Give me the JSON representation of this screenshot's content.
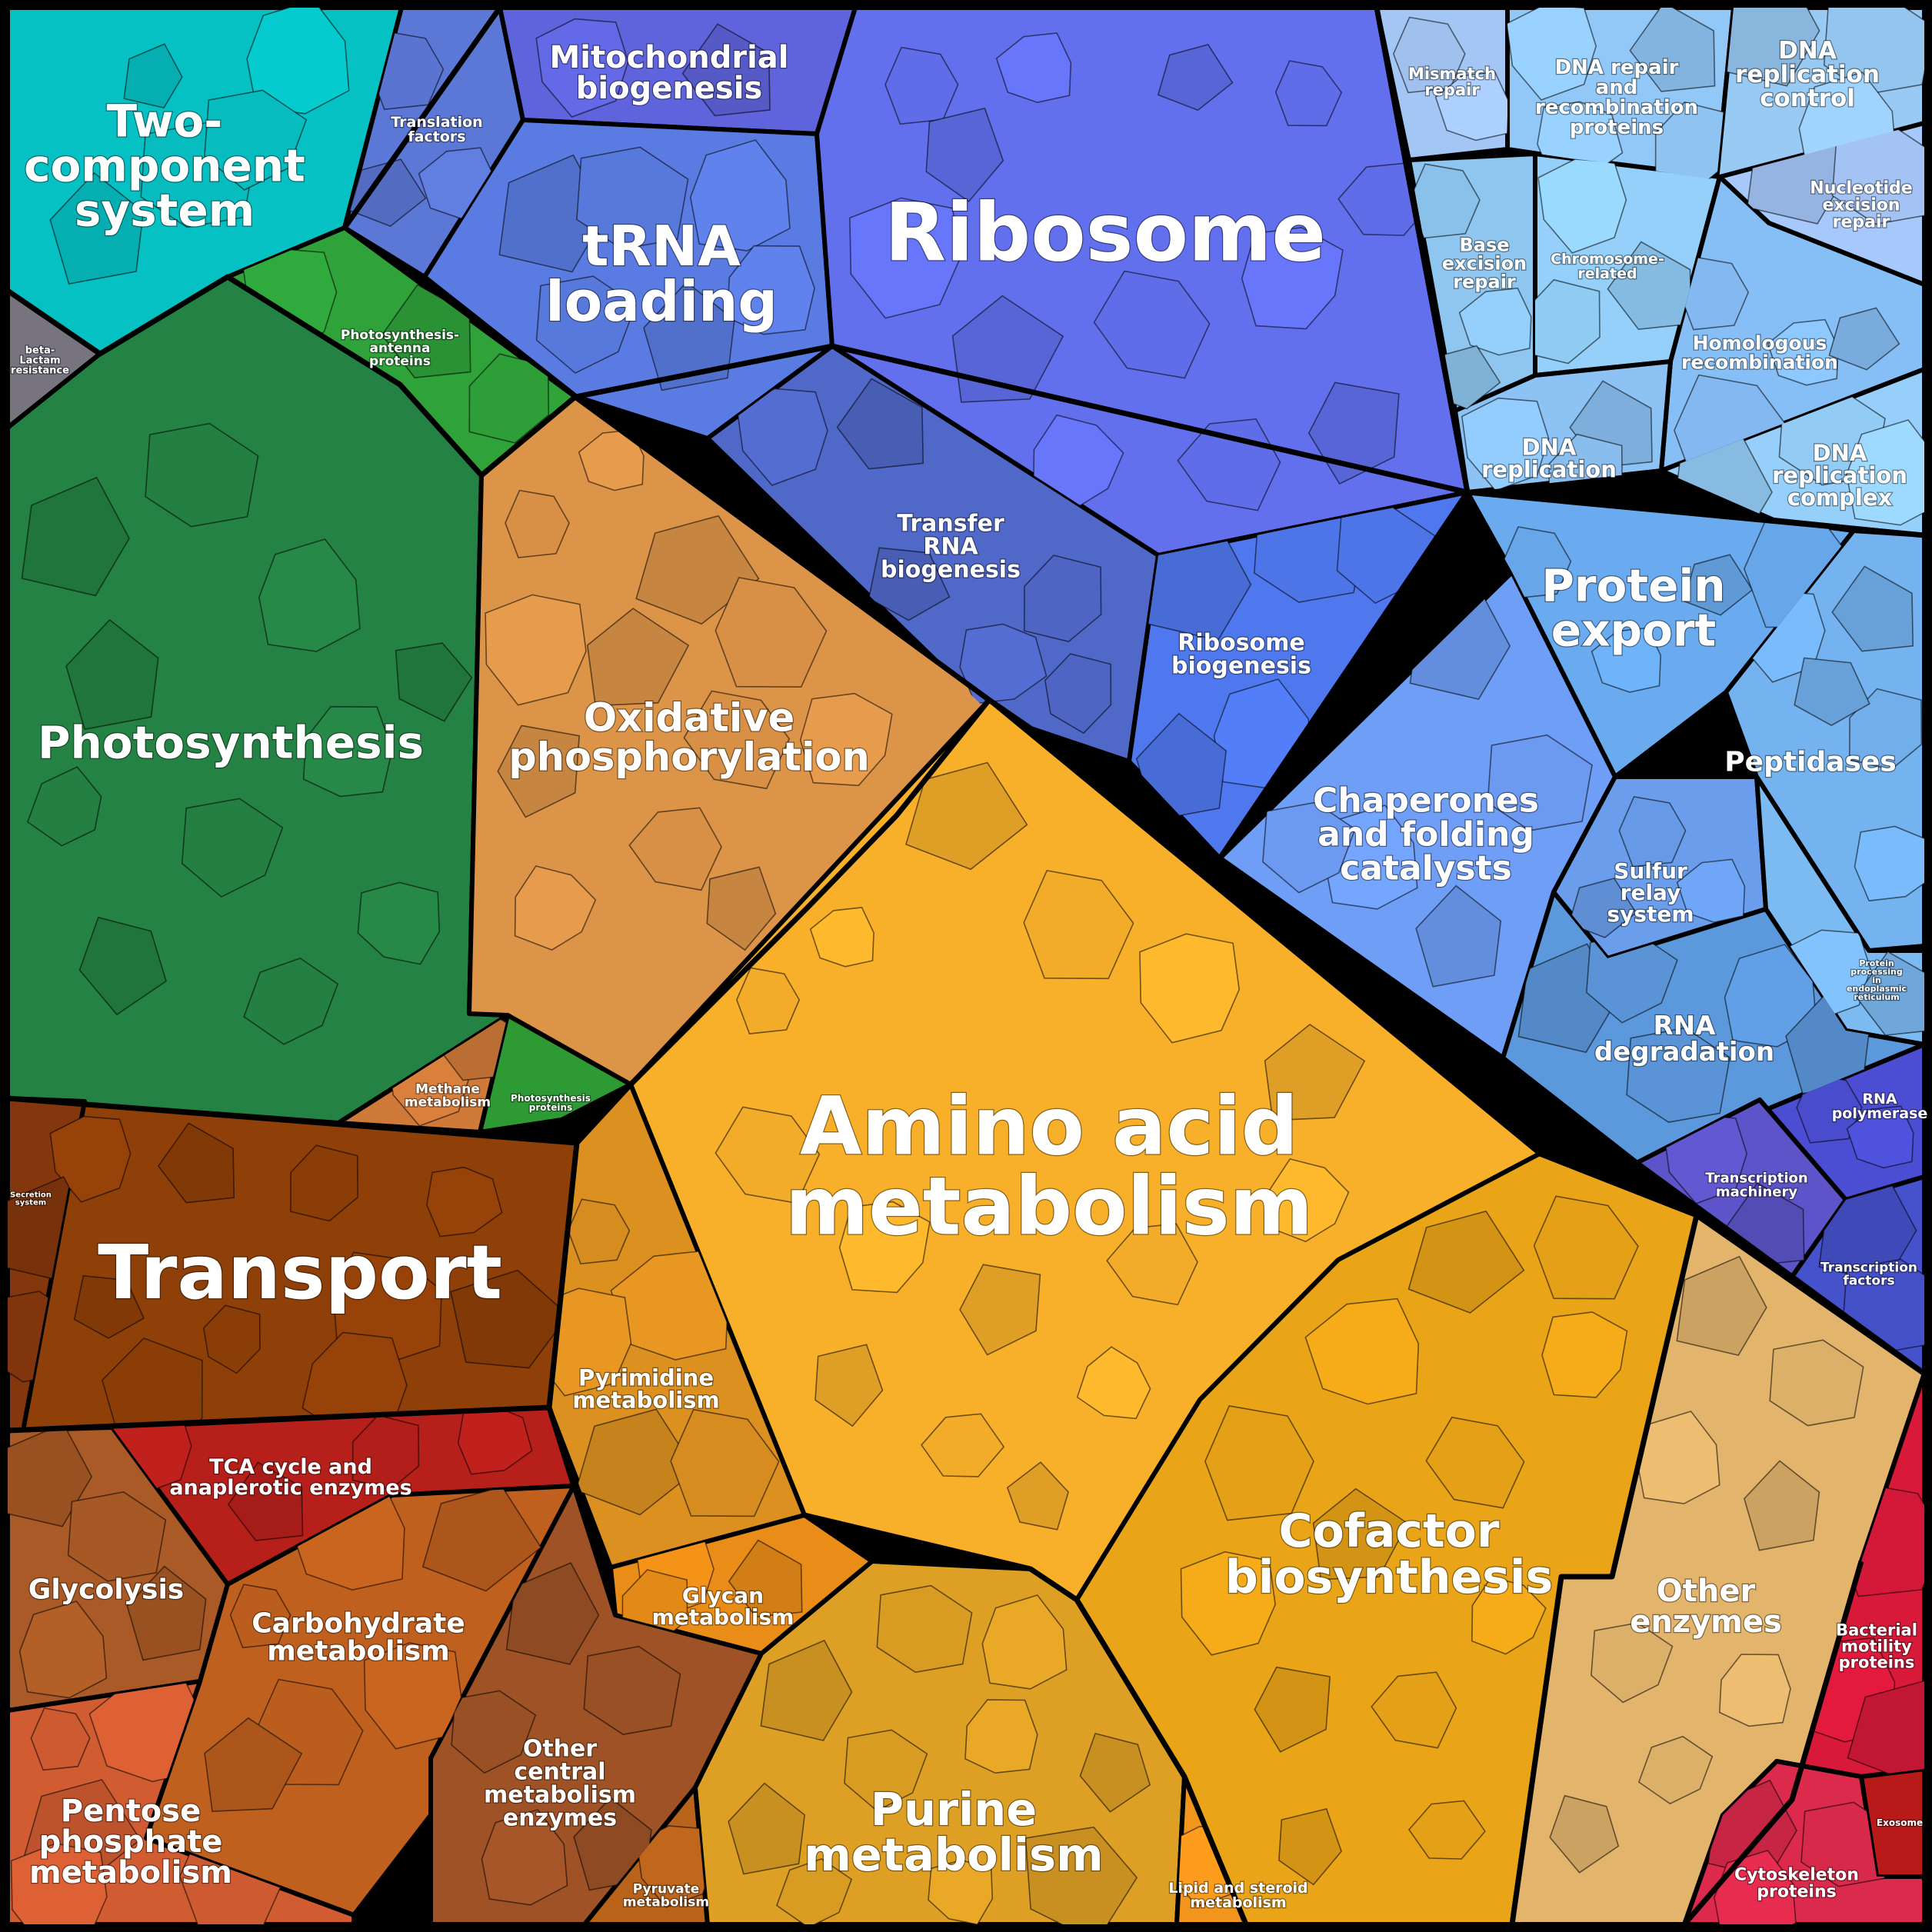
{
  "colors": {
    "cyan": "#06c1c4",
    "green_dark": "#248244",
    "green_light": "#2fa23a",
    "grey": "#777480",
    "blue_mid": "#5b72dc",
    "blue_violet": "#6070ee",
    "blue_light": "#8fc6f6",
    "blue_sky": "#6ea8f2",
    "indigo": "#4e50c8",
    "orange_light": "#dc9448",
    "orange_amber": "#f7ac2a",
    "gold": "#e4a41a",
    "brown": "#8f3f08",
    "red": "#b71f1b",
    "rust": "#bd5a22",
    "tan": "#e2b46c",
    "crimson": "#d8193a"
  },
  "categories": {
    "two_component": {
      "label": "Two-\ncomponent\nsystem",
      "color": "#06c1c4"
    },
    "beta_lactam": {
      "label": "beta-\nLactam\nresistance",
      "color": "#777480"
    },
    "photosynthesis": {
      "label": "Photosynthesis",
      "color": "#248244"
    },
    "photosynthesis_antenna": {
      "label": "Photosynthesis-\nantenna\nproteins",
      "color": "#2fa23a"
    },
    "photosynthesis_proteins": {
      "label": "Photosynthesis\nproteins",
      "color": "#2e9a34"
    },
    "translation_factors": {
      "label": "Translation\nfactors",
      "color": "#5c78d6"
    },
    "mitochondrial_biogenesis": {
      "label": "Mitochondrial\nbiogenesis",
      "color": "#5f64dc"
    },
    "trna_loading": {
      "label": "tRNA\nloading",
      "color": "#5a7ce2"
    },
    "ribosome": {
      "label": "Ribosome",
      "color": "#6270ee"
    },
    "transfer_rna_biogenesis": {
      "label": "Transfer\nRNA\nbiogenesis",
      "color": "#5068c8"
    },
    "ribosome_biogenesis": {
      "label": "Ribosome\nbiogenesis",
      "color": "#4f78ee"
    },
    "mismatch_repair": {
      "label": "Mismatch\nrepair",
      "color": "#a4c6f4"
    },
    "dna_repair": {
      "label": "DNA repair\nand\nrecombination\nproteins",
      "color": "#92c8f8"
    },
    "dna_replication_control": {
      "label": "DNA\nreplication\ncontrol",
      "color": "#98caf4"
    },
    "base_excision_repair": {
      "label": "Base\nexcision\nrepair",
      "color": "#8ec6f0"
    },
    "chromosome_related": {
      "label": "Chromosome-\nrelated",
      "color": "#94d0fa"
    },
    "nucleotide_excision_repair": {
      "label": "Nucleotide\nexcision\nrepair",
      "color": "#a6c8fa"
    },
    "homologous_recombination": {
      "label": "Homologous\nrecombination",
      "color": "#86bef6"
    },
    "dna_replication": {
      "label": "DNA\nreplication",
      "color": "#8cc2f4"
    },
    "dna_replication_complex": {
      "label": "DNA\nreplication\ncomplex",
      "color": "#96d0fa"
    },
    "protein_export": {
      "label": "Protein\nexport",
      "color": "#6aaaee"
    },
    "chaperones": {
      "label": "Chaperones\nand folding\ncatalysts",
      "color": "#6e9ef6"
    },
    "peptidases": {
      "label": "Peptidases",
      "color": "#74b2f0"
    },
    "sulfur_relay": {
      "label": "Sulfur\nrelay\nsystem",
      "color": "#6a9eec"
    },
    "protein_processing_er": {
      "label": "Protein\nprocessing\nin\nendoplasmic\nreticulum",
      "color": "#7cbaf2"
    },
    "rna_degradation": {
      "label": "RNA\ndegradation",
      "color": "#5c98dc"
    },
    "rna_polymerase": {
      "label": "RNA\npolymerase",
      "color": "#4b4ed2"
    },
    "transcription_machinery": {
      "label": "Transcription\nmachinery",
      "color": "#5c54c8"
    },
    "transcription_factors": {
      "label": "Transcription\nfactors",
      "color": "#4652cc"
    },
    "oxidative_phosphorylation": {
      "label": "Oxidative\nphosphorylation",
      "color": "#dc9448"
    },
    "methane_metabolism": {
      "label": "Methane\nmetabolism",
      "color": "#d07a3a"
    },
    "amino_acid": {
      "label": "Amino acid\nmetabolism",
      "color": "#f8b02a"
    },
    "transport": {
      "label": "Transport",
      "color": "#8f3f08"
    },
    "secretion_system": {
      "label": "Secretion\nsystem",
      "color": "#84360c"
    },
    "pyrimidine": {
      "label": "Pyrimidine\nmetabolism",
      "color": "#dc9020"
    },
    "tca_cycle": {
      "label": "TCA cycle and\nanaplerotic enzymes",
      "color": "#b71f1b"
    },
    "glycolysis": {
      "label": "Glycolysis",
      "color": "#aa5a26"
    },
    "carbohydrate": {
      "label": "Carbohydrate\nmetabolism",
      "color": "#c0601e"
    },
    "glycan": {
      "label": "Glycan\nmetabolism",
      "color": "#e98c18"
    },
    "other_central": {
      "label": "Other\ncentral\nmetabolism\nenzymes",
      "color": "#9e5226"
    },
    "pentose_phosphate": {
      "label": "Pentose\nphosphate\nmetabolism",
      "color": "#d25c32"
    },
    "pyruvate": {
      "label": "Pyruvate\nmetabolism",
      "color": "#b8621a"
    },
    "purine": {
      "label": "Purine\nmetabolism",
      "color": "#dea024"
    },
    "cofactor": {
      "label": "Cofactor\nbiosynthesis",
      "color": "#eaa418"
    },
    "lipid_steroid": {
      "label": "Lipid and steroid\nmetabolism",
      "color": "#f2951c"
    },
    "other_enzymes": {
      "label": "Other\nenzymes",
      "color": "#e2b46c"
    },
    "bacterial_motility": {
      "label": "Bacterial\nmotility\nproteins",
      "color": "#d8193a"
    },
    "cytoskeleton": {
      "label": "Cytoskeleton\nproteins",
      "color": "#dc2a4c"
    },
    "exosome": {
      "label": "Exosome",
      "color": "#b81a1a"
    }
  }
}
